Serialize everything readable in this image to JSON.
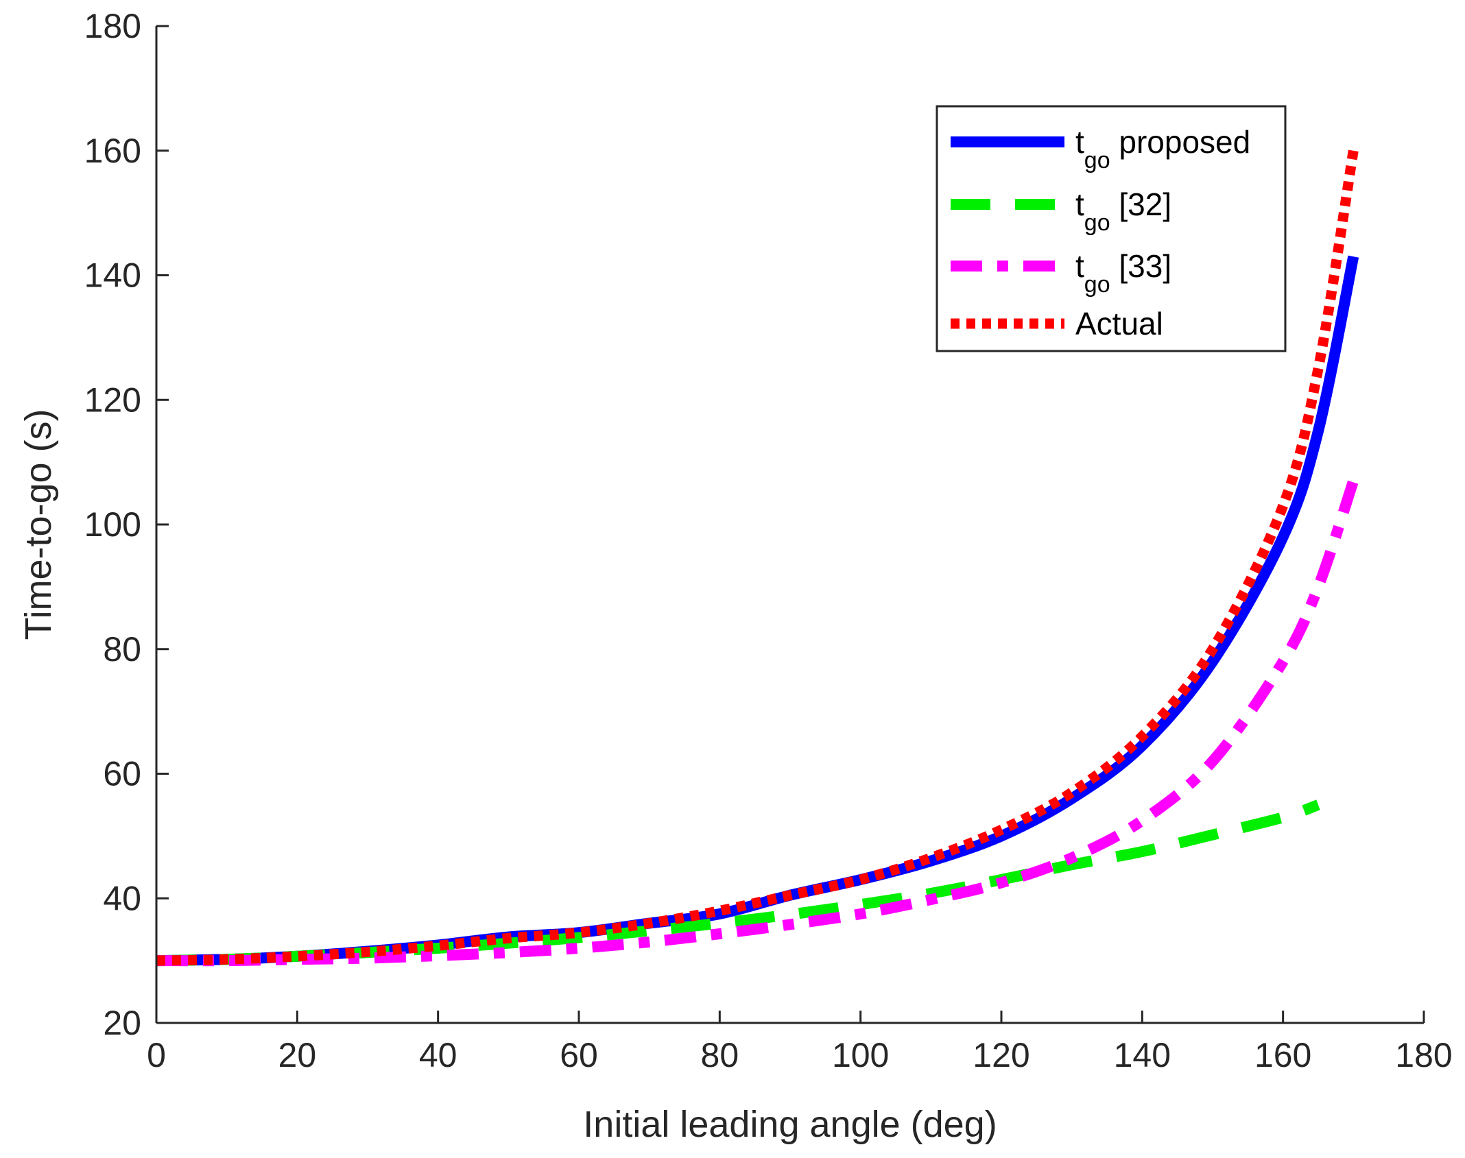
{
  "chart_data": {
    "type": "line",
    "title": "",
    "xlabel": "Initial leading angle (deg)",
    "ylabel": "Time-to-go (s)",
    "xlim": [
      0,
      180
    ],
    "ylim": [
      20,
      180
    ],
    "xticks": [
      0,
      20,
      40,
      60,
      80,
      100,
      120,
      140,
      160,
      180
    ],
    "yticks": [
      20,
      40,
      60,
      80,
      100,
      120,
      140,
      160,
      180
    ],
    "xtick_labels": [
      "0",
      "20",
      "40",
      "60",
      "80",
      "100",
      "120",
      "140",
      "160",
      "180"
    ],
    "ytick_labels": [
      "20",
      "40",
      "60",
      "80",
      "100",
      "120",
      "140",
      "160",
      "180"
    ],
    "grid": false,
    "legend_position": "top-right",
    "series": [
      {
        "name": "t_go proposed",
        "legend_main": "t",
        "legend_sub": "go",
        "legend_rest": " proposed",
        "color": "#0000ff",
        "style": "solid",
        "x": [
          0,
          10,
          20,
          30,
          40,
          50,
          60,
          70,
          80,
          90,
          100,
          110,
          120,
          130,
          140,
          150,
          160,
          165,
          170
        ],
        "y": [
          30,
          30.2,
          30.7,
          31.5,
          32.5,
          33.8,
          34.5,
          36,
          37.5,
          40.5,
          43,
          46,
          50,
          56,
          64.5,
          78,
          98,
          115,
          143
        ]
      },
      {
        "name": "t_go [32]",
        "legend_main": "t",
        "legend_sub": "go",
        "legend_rest": " [32]",
        "color": "#00ee00",
        "style": "dashed",
        "x": [
          0,
          10,
          20,
          30,
          40,
          50,
          60,
          70,
          80,
          90,
          100,
          110,
          120,
          130,
          140,
          150,
          160,
          165
        ],
        "y": [
          30,
          30.2,
          30.7,
          31.3,
          32,
          32.8,
          33.7,
          34.8,
          36,
          37.4,
          39,
          40.8,
          43,
          45.4,
          47.5,
          50.2,
          53,
          55
        ]
      },
      {
        "name": "t_go [33]",
        "legend_main": "t",
        "legend_sub": "go",
        "legend_rest": " [33]",
        "color": "#ff00ff",
        "style": "dash-dot",
        "x": [
          0,
          10,
          20,
          30,
          40,
          50,
          60,
          70,
          80,
          90,
          100,
          110,
          120,
          130,
          140,
          150,
          160,
          165,
          170
        ],
        "y": [
          30,
          30,
          30.2,
          30.4,
          30.8,
          31.3,
          32,
          33,
          34.3,
          35.8,
          37.5,
          39.8,
          42.5,
          46.5,
          52.5,
          62,
          78,
          90,
          107
        ]
      },
      {
        "name": "Actual",
        "legend_main": "Actual",
        "legend_sub": "",
        "legend_rest": "",
        "color": "#ff0000",
        "style": "dotted",
        "x": [
          0,
          10,
          20,
          30,
          40,
          50,
          60,
          70,
          80,
          90,
          100,
          110,
          120,
          130,
          140,
          150,
          160,
          165,
          170
        ],
        "y": [
          30,
          30.2,
          30.7,
          31.4,
          32.4,
          33.6,
          34.5,
          36,
          38,
          40.5,
          43,
          46.5,
          51,
          57,
          66,
          80,
          103,
          125,
          160
        ]
      }
    ]
  }
}
